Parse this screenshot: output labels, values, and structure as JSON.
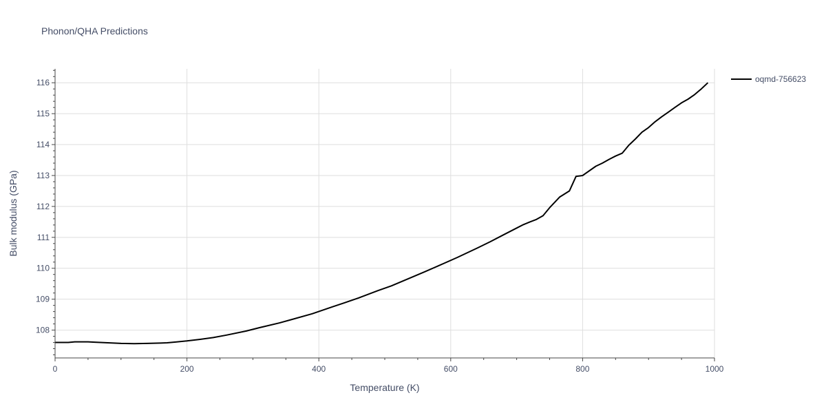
{
  "chart_data": {
    "type": "line",
    "title": "Phonon/QHA Predictions",
    "xlabel": "Temperature (K)",
    "ylabel": "Bulk modulus (GPa)",
    "xlim": [
      0,
      1000
    ],
    "ylim": [
      107.1,
      116.45
    ],
    "x_ticks": [
      0,
      200,
      400,
      600,
      800,
      1000
    ],
    "y_ticks": [
      108,
      109,
      110,
      111,
      112,
      113,
      114,
      115,
      116
    ],
    "grid": true,
    "legend_position": "top-right",
    "series": [
      {
        "name": "oqmd-756623",
        "color": "#000000",
        "x": [
          0,
          10,
          20,
          30,
          40,
          50,
          60,
          80,
          100,
          120,
          140,
          160,
          170,
          180,
          200,
          220,
          240,
          260,
          290,
          310,
          340,
          360,
          390,
          420,
          440,
          460,
          490,
          510,
          540,
          560,
          590,
          610,
          640,
          660,
          680,
          700,
          710,
          720,
          730,
          740,
          750,
          765,
          780,
          790,
          800,
          820,
          830,
          840,
          850,
          860,
          870,
          880,
          890,
          900,
          910,
          920,
          930,
          940,
          950,
          960,
          970,
          980,
          990
        ],
        "y": [
          107.6,
          107.6,
          107.6,
          107.62,
          107.62,
          107.62,
          107.61,
          107.59,
          107.57,
          107.56,
          107.57,
          107.58,
          107.59,
          107.61,
          107.65,
          107.7,
          107.76,
          107.84,
          107.97,
          108.08,
          108.23,
          108.35,
          108.53,
          108.75,
          108.89,
          109.04,
          109.28,
          109.43,
          109.7,
          109.88,
          110.16,
          110.35,
          110.65,
          110.86,
          111.08,
          111.3,
          111.41,
          111.5,
          111.58,
          111.7,
          111.96,
          112.3,
          112.5,
          112.97,
          113.0,
          113.3,
          113.4,
          113.52,
          113.63,
          113.72,
          113.98,
          114.18,
          114.4,
          114.55,
          114.74,
          114.9,
          115.05,
          115.2,
          115.35,
          115.47,
          115.62,
          115.8,
          116.0
        ]
      }
    ]
  }
}
